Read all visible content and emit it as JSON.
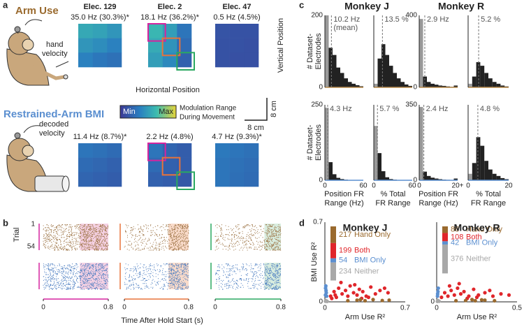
{
  "labels": [
    "a",
    "b",
    "c",
    "d"
  ],
  "panel_a": {
    "arm_title": "Arm Use",
    "bmi_title": "Restrained-Arm BMI",
    "hand_label": [
      "hand",
      "velocity"
    ],
    "decoded_label": [
      "decoded",
      "velocity"
    ],
    "horizontal": "Horizontal Position",
    "vertical": "Vertical Position",
    "colorbar": [
      "Min",
      "Max"
    ],
    "mod_label": [
      "Modulation Range",
      "During Movement"
    ],
    "scale_v": "8 cm",
    "scale_h": "8 cm",
    "electrodes": [
      {
        "name": "Elec. 129",
        "arm": "35.0 Hz (30.3%)*",
        "bmi": "11.4 Hz (8.7%)*",
        "arm_grid": [
          [
            0.55,
            0.52,
            0.46
          ],
          [
            0.46,
            0.42,
            0.36
          ],
          [
            0.36,
            0.31,
            0.28
          ]
        ],
        "bmi_grid": [
          [
            0.3,
            0.28,
            0.25
          ],
          [
            0.25,
            0.23,
            0.2
          ],
          [
            0.22,
            0.2,
            0.18
          ]
        ]
      },
      {
        "name": "Elec. 2",
        "arm": "18.1 Hz (36.2%)*",
        "bmi": "2.2 Hz (4.8%)",
        "arm_grid": [
          [
            0.62,
            0.5,
            0.3
          ],
          [
            0.56,
            0.45,
            0.25
          ],
          [
            0.5,
            0.4,
            0.2
          ]
        ],
        "bmi_grid": [
          [
            0.3,
            0.22,
            0.18
          ],
          [
            0.25,
            0.2,
            0.18
          ],
          [
            0.2,
            0.18,
            0.15
          ]
        ]
      },
      {
        "name": "Elec. 47",
        "arm": "0.5 Hz (4.5%)",
        "bmi": "4.7 Hz (9.3%)*",
        "arm_grid": [
          [
            0.13,
            0.12,
            0.12
          ],
          [
            0.12,
            0.12,
            0.11
          ],
          [
            0.12,
            0.11,
            0.11
          ]
        ],
        "bmi_grid": [
          [
            0.32,
            0.3,
            0.28
          ],
          [
            0.3,
            0.28,
            0.26
          ],
          [
            0.3,
            0.27,
            0.25
          ]
        ]
      }
    ]
  },
  "panel_b": {
    "trial_label": "Trial",
    "trial_ticks": [
      "1",
      "54"
    ],
    "xlim": [
      0,
      0.8
    ],
    "xticks": [
      0,
      0.8
    ],
    "xlabel": "Time After Hold Start (s)"
  },
  "chart_data": [
    {
      "type": "histogram",
      "title": "Monkey J",
      "ylabel": [
        "# Dataset-",
        "Electrodes"
      ],
      "color": "#b88a4a",
      "bins": [
        0,
        6,
        12,
        18,
        24,
        30,
        36,
        42,
        48,
        54,
        60
      ],
      "counts": [
        200,
        110,
        90,
        55,
        40,
        25,
        15,
        10,
        6,
        3
      ],
      "xlim": [
        0,
        60
      ],
      "ylim": [
        0,
        200
      ],
      "yticks": [
        0,
        200
      ],
      "mean": {
        "value": 10.2,
        "label": "10.2 Hz"
      },
      "mean_note": "(mean)"
    },
    {
      "type": "histogram",
      "color": "#b88a4a",
      "bins": [
        0,
        6,
        12,
        18,
        24,
        30,
        36,
        42,
        48,
        54,
        60
      ],
      "counts": [
        10,
        80,
        120,
        90,
        60,
        40,
        25,
        15,
        8,
        4
      ],
      "xlim": [
        0,
        60
      ],
      "ylim": [
        0,
        200
      ],
      "mean": {
        "value": 13.5,
        "label": "13.5 %"
      }
    },
    {
      "type": "histogram",
      "title": "Monkey R",
      "color": "#b88a4a",
      "bins": [
        0,
        2,
        4,
        6,
        8,
        10,
        12,
        14,
        16,
        18,
        20
      ],
      "counts": [
        380,
        60,
        30,
        20,
        15,
        10,
        8,
        5,
        3,
        10
      ],
      "xlim": [
        0,
        20
      ],
      "ylim": [
        0,
        400
      ],
      "yticks": [
        0,
        400
      ],
      "mean": {
        "value": 2.9,
        "label": "2.9 Hz"
      }
    },
    {
      "type": "histogram",
      "color": "#b88a4a",
      "bins": [
        0,
        2,
        4,
        6,
        8,
        10,
        12,
        14,
        16,
        18,
        20
      ],
      "counts": [
        20,
        60,
        140,
        120,
        80,
        50,
        30,
        20,
        10,
        5
      ],
      "xlim": [
        0,
        20
      ],
      "ylim": [
        0,
        400
      ],
      "mean": {
        "value": 5.2,
        "label": "5.2 %"
      }
    },
    {
      "type": "histogram",
      "ylabel": [
        "# Dataset-",
        "Electrodes"
      ],
      "color": "#5b8fd0",
      "bins": [
        0,
        6,
        12,
        18,
        24,
        30,
        36,
        42,
        48,
        54,
        60
      ],
      "counts": [
        240,
        60,
        20,
        8,
        4,
        2,
        1,
        1,
        0,
        0
      ],
      "xlim": [
        0,
        60
      ],
      "ylim": [
        0,
        250
      ],
      "yticks": [
        0,
        250
      ],
      "xticks": [
        0,
        60
      ],
      "xlabel": [
        "Position FR",
        "Range (Hz)"
      ],
      "mean": {
        "value": 4.3,
        "label": "4.3 Hz"
      }
    },
    {
      "type": "histogram",
      "color": "#5b8fd0",
      "bins": [
        0,
        6,
        12,
        18,
        24,
        30,
        36,
        42,
        48,
        54,
        60
      ],
      "counts": [
        180,
        90,
        30,
        10,
        4,
        2,
        1,
        0,
        0,
        0
      ],
      "xlim": [
        0,
        60
      ],
      "ylim": [
        0,
        250
      ],
      "xticks": [
        0,
        60
      ],
      "xlabel": [
        "% Total",
        "FR Range"
      ],
      "mean": {
        "value": 5.7,
        "label": "5.7 %"
      }
    },
    {
      "type": "histogram",
      "color": "#5b8fd0",
      "bins": [
        0,
        2,
        4,
        6,
        8,
        10,
        12,
        14,
        16,
        18,
        20
      ],
      "counts": [
        340,
        40,
        20,
        12,
        8,
        5,
        3,
        2,
        1,
        8
      ],
      "xlim": [
        0,
        20
      ],
      "ylim": [
        0,
        350
      ],
      "yticks": [
        0,
        350
      ],
      "xticks": [
        0,
        {
          "value": 20,
          "label": "20+"
        }
      ],
      "xlabel": [
        "Position FR",
        "Range (Hz)"
      ],
      "mean": {
        "value": 2.4,
        "label": "2.4 Hz"
      }
    },
    {
      "type": "histogram",
      "color": "#5b8fd0",
      "bins": [
        0,
        2,
        4,
        6,
        8,
        10,
        12,
        14,
        16,
        18,
        20
      ],
      "counts": [
        30,
        80,
        200,
        160,
        90,
        50,
        30,
        20,
        10,
        5
      ],
      "xlim": [
        0,
        20
      ],
      "ylim": [
        0,
        350
      ],
      "xticks": [
        0,
        20
      ],
      "xlabel": [
        "% Total",
        "FR Range"
      ],
      "mean": {
        "value": 4.8,
        "label": "4.8 %"
      }
    },
    {
      "type": "scatter",
      "title": "Monkey J",
      "xlabel": "Arm Use R²",
      "ylabel": "BMI Use R²",
      "xlim": [
        0,
        0.7
      ],
      "ylim": [
        0,
        0.7
      ],
      "xticks": [
        0,
        0.7
      ],
      "yticks": [
        0,
        0.7
      ],
      "series": [
        {
          "name": "Hand Only",
          "count": 217,
          "color": "#9a6a2e",
          "x": [
            0.2,
            0.28,
            0.35,
            0.42,
            0.5,
            0.56,
            0.31
          ],
          "values": [
            0.01,
            0.015,
            0.01,
            0.02,
            0.012,
            0.015,
            0.02
          ]
        },
        {
          "name": "Both",
          "count": 199,
          "color": "#e0262b",
          "x": [
            0.05,
            0.08,
            0.1,
            0.12,
            0.15,
            0.18,
            0.2,
            0.22,
            0.25,
            0.28,
            0.3,
            0.33,
            0.36,
            0.4,
            0.44,
            0.48,
            0.52,
            0.55,
            0.14,
            0.26,
            0.38,
            0.06,
            0.09,
            0.32
          ],
          "values": [
            0.05,
            0.09,
            0.04,
            0.12,
            0.07,
            0.1,
            0.05,
            0.14,
            0.08,
            0.06,
            0.11,
            0.09,
            0.05,
            0.13,
            0.07,
            0.1,
            0.12,
            0.08,
            0.17,
            0.15,
            0.04,
            0.03,
            0.06,
            0.03
          ]
        },
        {
          "name": "BMI Only",
          "count": 54,
          "color": "#5b8fd0",
          "x": [
            0.005,
            0.01,
            0.008,
            0.012,
            0.006,
            0.015
          ],
          "values": [
            0.06,
            0.1,
            0.14,
            0.08,
            0.12,
            0.05
          ]
        },
        {
          "name": "Neither",
          "count": 234,
          "color": "#a8a8a8",
          "x": [
            0.005,
            0.01,
            0.02,
            0.015
          ],
          "values": [
            0.005,
            0.01,
            0.004,
            0.008
          ]
        }
      ]
    },
    {
      "type": "scatter",
      "title": "Monkey R",
      "xlabel": "Arm Use R²",
      "xlim": [
        0,
        0.5
      ],
      "ylim": [
        0,
        0.7
      ],
      "xticks": [
        0,
        0.5
      ],
      "yticks": [
        0
      ],
      "series": [
        {
          "name": "Hand Only",
          "count": 86,
          "color": "#9a6a2e",
          "x": [
            0.12,
            0.18,
            0.24,
            0.3,
            0.36,
            0.22,
            0.28
          ],
          "values": [
            0.01,
            0.012,
            0.01,
            0.015,
            0.01,
            0.02,
            0.018
          ]
        },
        {
          "name": "Both",
          "count": 108,
          "color": "#e0262b",
          "x": [
            0.03,
            0.05,
            0.07,
            0.09,
            0.11,
            0.13,
            0.15,
            0.17,
            0.2,
            0.23,
            0.26,
            0.3,
            0.35,
            0.4,
            0.45,
            0.08,
            0.14,
            0.19,
            0.25,
            0.33
          ],
          "values": [
            0.04,
            0.08,
            0.05,
            0.1,
            0.06,
            0.12,
            0.07,
            0.09,
            0.05,
            0.11,
            0.06,
            0.08,
            0.05,
            0.07,
            0.06,
            0.14,
            0.16,
            0.03,
            0.04,
            0.1
          ]
        },
        {
          "name": "BMI Only",
          "count": 42,
          "color": "#5b8fd0",
          "x": [
            0.005,
            0.008,
            0.01,
            0.006
          ],
          "values": [
            0.05,
            0.09,
            0.12,
            0.07
          ]
        },
        {
          "name": "Neither",
          "count": 376,
          "color": "#a8a8a8",
          "x": [
            0.004,
            0.01,
            0.015,
            0.008
          ],
          "values": [
            0.004,
            0.008,
            0.005,
            0.012
          ]
        }
      ]
    }
  ]
}
